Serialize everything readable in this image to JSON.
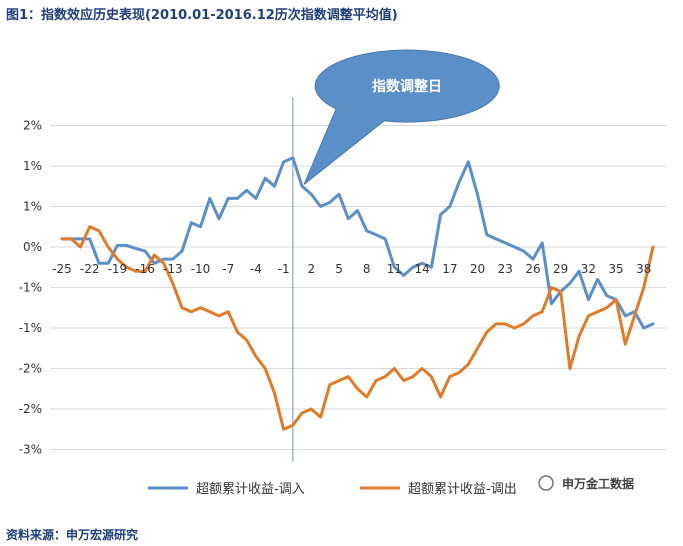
{
  "header": {
    "figure_title": "图1：指数效应历史表现(2010.01-2016.12历次指数调整平均值)"
  },
  "footer": {
    "source": "资料来源：申万宏源研究"
  },
  "watermark": {
    "text": "申万金工数据"
  },
  "colors": {
    "series_in": "#5b8fc7",
    "series_out": "#e07b2a",
    "grid": "#d9d9d9",
    "callout": "#5b8fc7",
    "title": "#1f3f7a"
  },
  "chart_data": {
    "type": "line",
    "x": [
      -25,
      -24,
      -23,
      -22,
      -21,
      -20,
      -19,
      -18,
      -17,
      -16,
      -15,
      -14,
      -13,
      -12,
      -11,
      -10,
      -9,
      -8,
      -7,
      -6,
      -5,
      -4,
      -3,
      -2,
      -1,
      0,
      1,
      2,
      3,
      4,
      5,
      6,
      7,
      8,
      9,
      10,
      11,
      12,
      13,
      14,
      15,
      16,
      17,
      18,
      19,
      20,
      21,
      22,
      23,
      24,
      25,
      26,
      27,
      28,
      29,
      30,
      31,
      32,
      33,
      34,
      35,
      36,
      37,
      38,
      39
    ],
    "xticks": [
      -25,
      -22,
      -19,
      -16,
      -13,
      -10,
      -7,
      -4,
      -1,
      2,
      5,
      8,
      11,
      14,
      17,
      20,
      23,
      26,
      29,
      32,
      35,
      38
    ],
    "ytick_labels": [
      "2%",
      "1%",
      "1%",
      "0%",
      "-1%",
      "-1%",
      "-2%",
      "-2%",
      "-3%"
    ],
    "ytick_values": [
      1.5,
      1.0,
      0.5,
      0,
      -0.5,
      -1.0,
      -1.5,
      -2.0,
      -2.5
    ],
    "ylim": [
      -2.55,
      1.55
    ],
    "annotation": "指数调整日",
    "series": [
      {
        "name": "超额累计收益-调入",
        "values": [
          0.1,
          0.1,
          0.1,
          0.1,
          -0.2,
          -0.2,
          0.02,
          0.02,
          -0.02,
          -0.05,
          -0.2,
          -0.15,
          -0.15,
          -0.05,
          0.3,
          0.25,
          0.6,
          0.35,
          0.6,
          0.6,
          0.7,
          0.6,
          0.85,
          0.75,
          1.05,
          1.1,
          0.75,
          0.65,
          0.5,
          0.55,
          0.65,
          0.35,
          0.45,
          0.2,
          0.15,
          0.1,
          -0.25,
          -0.35,
          -0.25,
          -0.2,
          -0.25,
          0.4,
          0.5,
          0.8,
          1.05,
          0.65,
          0.15,
          0.1,
          0.05,
          0,
          -0.05,
          -0.15,
          0.05,
          -0.7,
          -0.55,
          -0.45,
          -0.3,
          -0.65,
          -0.4,
          -0.6,
          -0.65,
          -0.85,
          -0.8,
          -1.0,
          -0.95
        ]
      },
      {
        "name": "超额累计收益-调出",
        "values": [
          0.1,
          0.1,
          0.0,
          0.25,
          0.2,
          0.0,
          -0.15,
          -0.25,
          -0.3,
          -0.3,
          -0.1,
          -0.2,
          -0.45,
          -0.75,
          -0.8,
          -0.75,
          -0.8,
          -0.85,
          -0.8,
          -1.05,
          -1.15,
          -1.35,
          -1.5,
          -1.8,
          -2.25,
          -2.2,
          -2.05,
          -2.0,
          -2.1,
          -1.7,
          -1.65,
          -1.6,
          -1.75,
          -1.85,
          -1.65,
          -1.6,
          -1.5,
          -1.65,
          -1.6,
          -1.5,
          -1.6,
          -1.85,
          -1.6,
          -1.55,
          -1.45,
          -1.25,
          -1.05,
          -0.95,
          -0.95,
          -1.0,
          -0.95,
          -0.85,
          -0.8,
          -0.5,
          -0.55,
          -1.5,
          -1.1,
          -0.85,
          -0.8,
          -0.75,
          -0.65,
          -1.2,
          -0.85,
          -0.5,
          0.0
        ]
      }
    ]
  }
}
